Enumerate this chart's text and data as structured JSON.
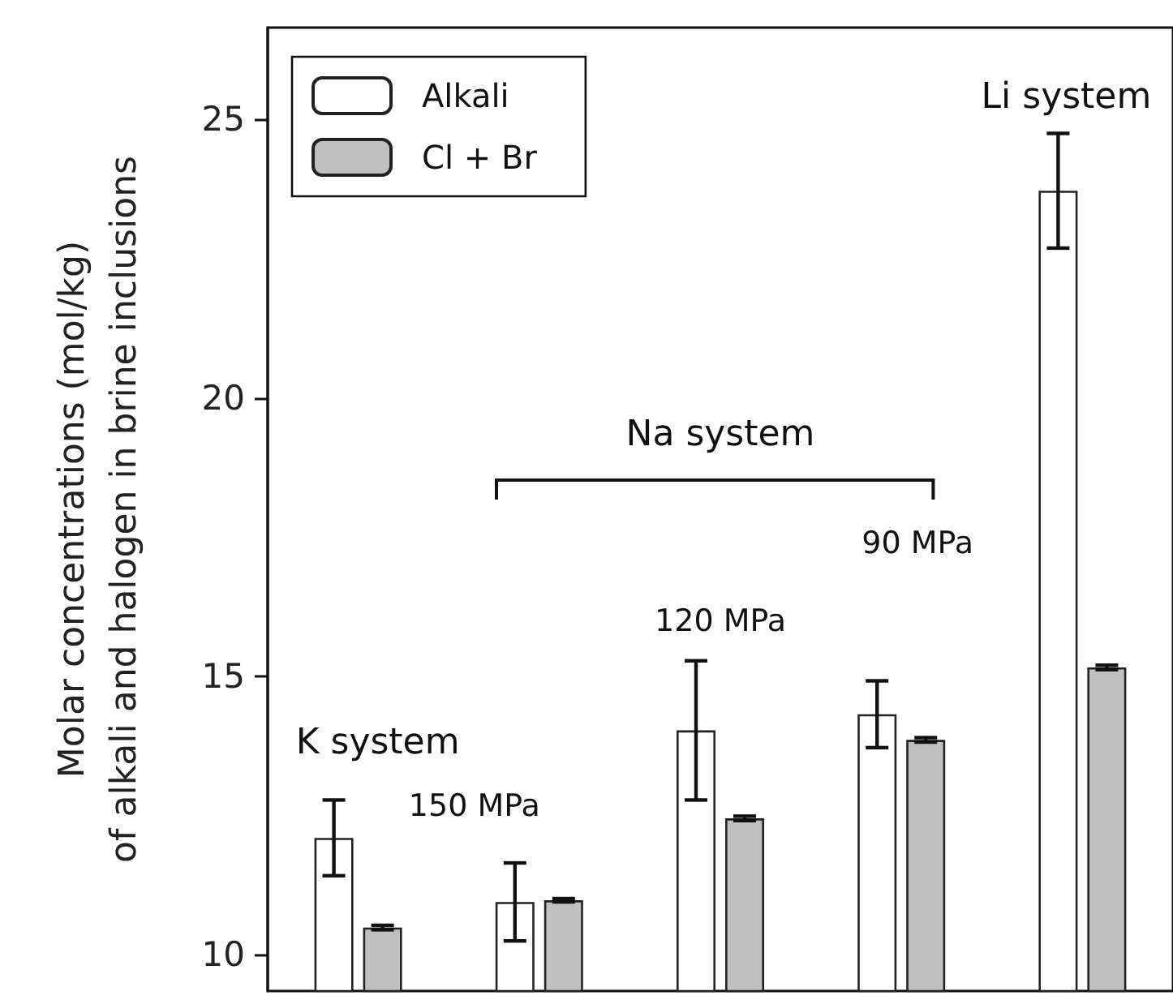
{
  "chart_data": {
    "type": "bar",
    "ylabel": "Molar concentrations (mol/kg)\nof alkali and halogen in brine inclusions",
    "categories": [
      null,
      null,
      null,
      null,
      null
    ],
    "series": [
      {
        "name": "Alkali",
        "color": "#ffffff",
        "values": [
          12.1,
          10.95,
          14.03,
          14.32,
          23.72
        ],
        "errors": [
          0.68,
          0.7,
          1.25,
          0.6,
          1.03
        ]
      },
      {
        "name": "Cl + Br",
        "color": "#c0c0c0",
        "values": [
          10.49,
          10.98,
          12.45,
          13.86,
          15.16
        ],
        "errors": [
          0.04,
          0.03,
          0.04,
          0.04,
          0.04
        ]
      }
    ],
    "ylim": [
      9.35,
      26.65
    ],
    "yticks": [
      10,
      15,
      20,
      25
    ],
    "grid": false,
    "legend": "top left",
    "annotations": [
      "K system",
      "150 MPa",
      "120 MPa",
      "90 MPa",
      "Na system",
      "Li system"
    ]
  }
}
